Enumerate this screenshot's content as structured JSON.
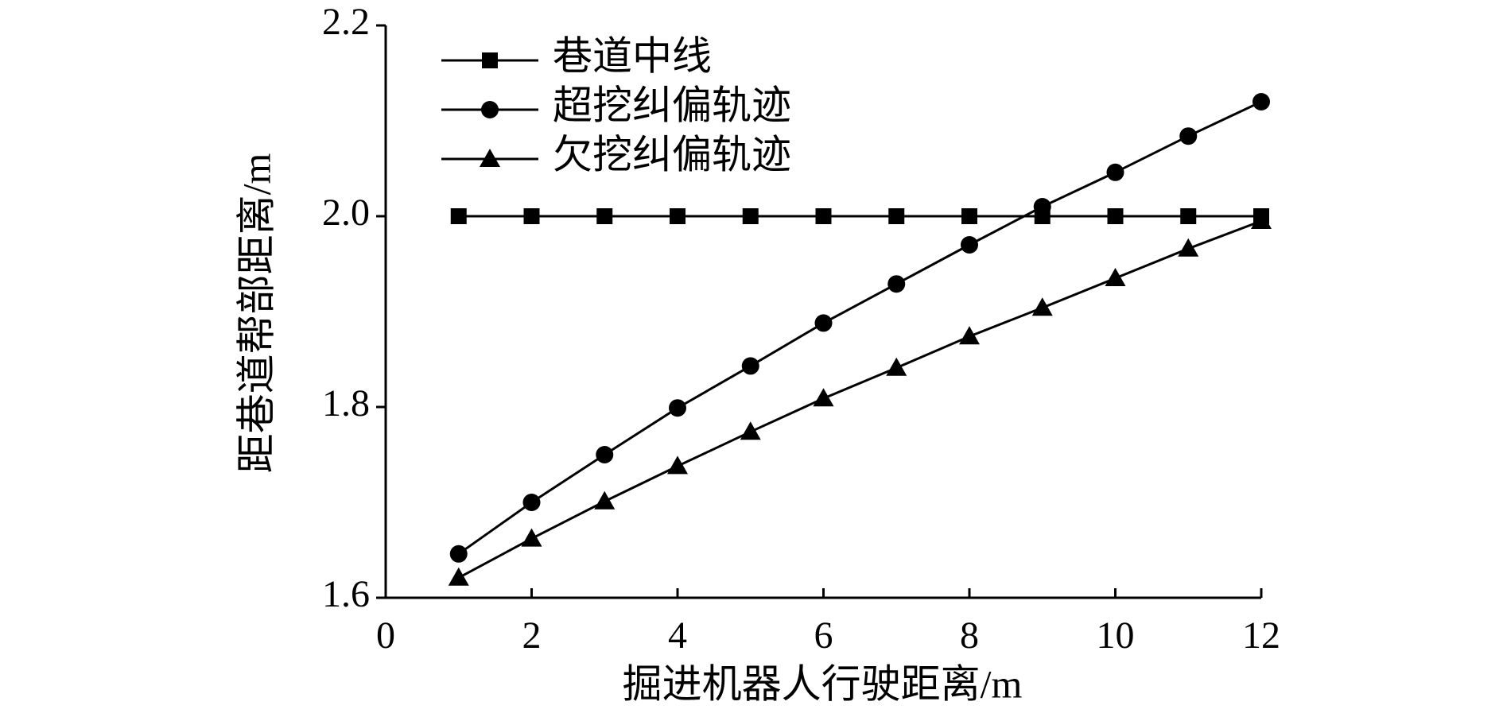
{
  "chart_data": {
    "type": "line",
    "x_label": "掘进机器人行驶距离/m",
    "y_label": "距巷道帮部距离/m",
    "x": [
      1,
      2,
      3,
      4,
      5,
      6,
      7,
      8,
      9,
      10,
      11,
      12
    ],
    "series": [
      {
        "name": "巷道中线",
        "color": "#000000",
        "marker": "square",
        "values": [
          2.0,
          2.0,
          2.0,
          2.0,
          2.0,
          2.0,
          2.0,
          2.0,
          2.0,
          2.0,
          2.0,
          2.0
        ]
      },
      {
        "name": "超挖纠偏轨迹",
        "color": "#000000",
        "marker": "circle",
        "values": [
          1.646,
          1.7,
          1.75,
          1.799,
          1.843,
          1.888,
          1.929,
          1.97,
          2.01,
          2.046,
          2.084,
          2.12
        ]
      },
      {
        "name": "欠挖纠偏轨迹",
        "color": "#000000",
        "marker": "triangle",
        "values": [
          1.621,
          1.662,
          1.701,
          1.738,
          1.774,
          1.809,
          1.841,
          1.874,
          1.904,
          1.935,
          1.966,
          1.995
        ]
      }
    ],
    "xlim": [
      0,
      12
    ],
    "xticks": [
      0,
      2,
      4,
      6,
      8,
      10,
      12
    ],
    "ylim": [
      1.6,
      2.2
    ],
    "yticks": [
      1.6,
      1.8,
      {
        "value": 2,
        "label": "2.0"
      },
      2.2
    ],
    "legend": "top-left"
  }
}
